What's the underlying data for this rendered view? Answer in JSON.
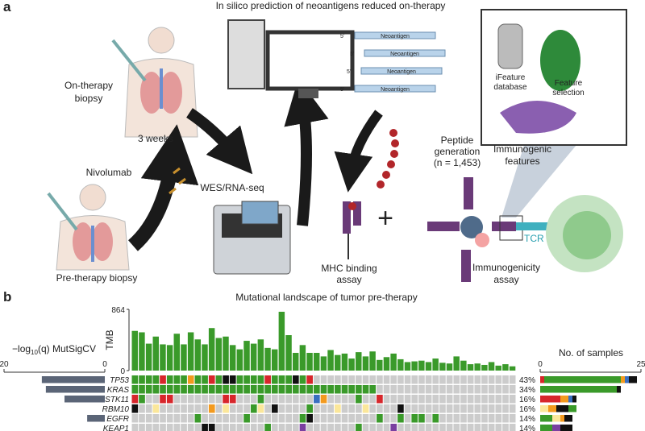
{
  "panel_a": {
    "label": "a",
    "title": "In silico prediction of neoantigens reduced on-therapy",
    "on_therapy": [
      "On-therapy",
      "biopsy"
    ],
    "weeks": "3 weeks",
    "drug": "Nivolumab",
    "pre_therapy": "Pre-therapy biopsy",
    "sequencing": "WES/RNA-seq",
    "neoantigen_rows": [
      {
        "prime": "5'",
        "label": "Neoantigen"
      },
      {
        "prime": "5'",
        "label": "Neoantigen"
      },
      {
        "prime": "5'",
        "label": "Neoantigen"
      },
      {
        "prime": "5'",
        "label": "Neoantigen"
      }
    ],
    "ifeature": [
      "iFeature",
      "database"
    ],
    "feature_selection": [
      "Feature",
      "selection"
    ],
    "peptide": [
      "Peptide",
      "generation",
      "(n = 1,453)"
    ],
    "immunogenic": [
      "Immunogenic",
      "features"
    ],
    "plus": "+",
    "mhc": [
      "MHC binding",
      "assay"
    ],
    "tcr": "TCR",
    "immunogenicity": [
      "Immunogenicity",
      "assay"
    ]
  },
  "panel_b": {
    "label": "b",
    "title": "Mutational landscape of tumor pre-therapy",
    "tmb": {
      "axis_label": "TMB",
      "ylim": [
        0,
        864
      ],
      "yticks": [
        0,
        864
      ],
      "color": "#3a9a2a",
      "values": [
        560,
        540,
        380,
        480,
        370,
        360,
        520,
        370,
        540,
        440,
        370,
        600,
        460,
        480,
        360,
        300,
        420,
        380,
        440,
        320,
        300,
        830,
        500,
        250,
        360,
        250,
        250,
        200,
        290,
        220,
        240,
        170,
        260,
        200,
        270,
        150,
        190,
        240,
        160,
        120,
        130,
        140,
        120,
        170,
        110,
        100,
        200,
        140,
        90,
        100,
        80,
        120,
        70,
        90,
        60
      ]
    },
    "mutsig": {
      "label_parts": [
        "−log",
        "10",
        "(q) MutSigCV"
      ],
      "xlim": [
        20,
        0
      ],
      "xticks": [
        20,
        0
      ],
      "color": "#5b6577",
      "values": [
        12.5,
        11.7,
        8,
        null,
        3.5,
        null
      ]
    },
    "cell_colors": {
      "g": "#3a9a2a",
      "r": "#d7262b",
      "o": "#f39a1e",
      "k": "#111111",
      "y": "#fbe79a",
      "b": "#3a6fc0",
      "p": "#7a3fa0",
      ".": "#cccccc"
    },
    "genes": [
      {
        "name": "TP53",
        "percent": "43%",
        "cells": "ggggrgggoggrgkkggggrgggkgr"
      },
      {
        "name": "KRAS",
        "percent": "34%",
        "cells": "ggggggggggggggggggggggggggggggggggg"
      },
      {
        "name": "STK11",
        "percent": "16%",
        "cells": "rg..rr.......rr...g.......bo....g..r"
      },
      {
        "name": "RBM10",
        "percent": "16%",
        "cells": "k..y.......o.y...gy.k....g...y...y....k"
      },
      {
        "name": "EGFR",
        "percent": "14%",
        "cells": ".........g......g.......gk.........g..g.gg.g"
      },
      {
        "name": "KEAP1",
        "percent": "14%",
        "cells": "..........kk.......g....p.......g....p.."
      }
    ],
    "samples": {
      "axis_label": "No. of samples",
      "xlim": [
        0,
        25
      ],
      "xticks": [
        0,
        25
      ],
      "segments": [
        [
          {
            "color": "#d7262b",
            "value": 1
          },
          {
            "color": "#3a9a2a",
            "value": 19
          },
          {
            "color": "#f39a1e",
            "value": 1
          },
          {
            "color": "#3a6fc0",
            "value": 1
          },
          {
            "color": "#111111",
            "value": 2
          }
        ],
        [
          {
            "color": "#3a9a2a",
            "value": 19
          },
          {
            "color": "#111111",
            "value": 1
          }
        ],
        [
          {
            "color": "#d7262b",
            "value": 5
          },
          {
            "color": "#f39a1e",
            "value": 2
          },
          {
            "color": "#3a6fc0",
            "value": 1
          },
          {
            "color": "#111111",
            "value": 1
          }
        ],
        [
          {
            "color": "#fbe79a",
            "value": 2
          },
          {
            "color": "#f39a1e",
            "value": 2
          },
          {
            "color": "#111111",
            "value": 3
          },
          {
            "color": "#3a9a2a",
            "value": 2
          }
        ],
        [
          {
            "color": "#3a9a2a",
            "value": 3
          },
          {
            "color": "#fbe79a",
            "value": 2
          },
          {
            "color": "#f39a1e",
            "value": 1
          },
          {
            "color": "#111111",
            "value": 2
          }
        ],
        [
          {
            "color": "#3a9a2a",
            "value": 3
          },
          {
            "color": "#7a3fa0",
            "value": 2
          },
          {
            "color": "#111111",
            "value": 3
          }
        ]
      ]
    }
  }
}
